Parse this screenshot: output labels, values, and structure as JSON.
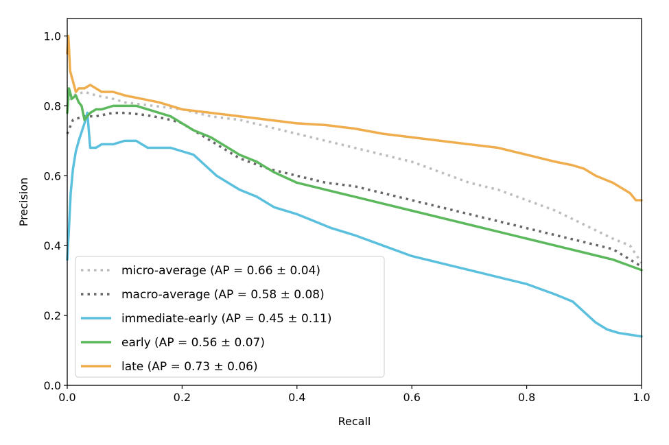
{
  "chart_data": {
    "type": "line",
    "title": "",
    "xlabel": "Recall",
    "ylabel": "Precision",
    "xlim": [
      0.0,
      1.0
    ],
    "ylim": [
      0.0,
      1.05
    ],
    "xticks": [
      "0.0",
      "0.2",
      "0.4",
      "0.6",
      "0.8",
      "1.0"
    ],
    "yticks": [
      "0.0",
      "0.2",
      "0.4",
      "0.6",
      "0.8",
      "1.0"
    ],
    "grid": false,
    "legend_position": "lower-left",
    "series": [
      {
        "name": "micro-average (AP = 0.66 ± 0.04)",
        "color": "#bdbdbd",
        "style": "dotted",
        "x": [
          0.0,
          0.01,
          0.03,
          0.05,
          0.08,
          0.1,
          0.15,
          0.2,
          0.25,
          0.3,
          0.35,
          0.4,
          0.45,
          0.5,
          0.55,
          0.6,
          0.65,
          0.7,
          0.75,
          0.8,
          0.85,
          0.9,
          0.95,
          0.98,
          1.0
        ],
        "y": [
          0.8,
          0.83,
          0.84,
          0.83,
          0.82,
          0.81,
          0.8,
          0.79,
          0.77,
          0.76,
          0.74,
          0.72,
          0.7,
          0.68,
          0.66,
          0.64,
          0.61,
          0.58,
          0.56,
          0.53,
          0.5,
          0.46,
          0.42,
          0.4,
          0.35
        ]
      },
      {
        "name": "macro-average (AP = 0.58 ± 0.08)",
        "color": "#666666",
        "style": "dotted",
        "x": [
          0.0,
          0.01,
          0.03,
          0.05,
          0.08,
          0.1,
          0.13,
          0.15,
          0.18,
          0.2,
          0.22,
          0.25,
          0.28,
          0.3,
          0.35,
          0.4,
          0.45,
          0.5,
          0.55,
          0.6,
          0.65,
          0.7,
          0.75,
          0.8,
          0.85,
          0.9,
          0.95,
          1.0
        ],
        "y": [
          0.72,
          0.76,
          0.77,
          0.77,
          0.78,
          0.78,
          0.775,
          0.77,
          0.76,
          0.75,
          0.73,
          0.7,
          0.67,
          0.65,
          0.62,
          0.6,
          0.58,
          0.57,
          0.55,
          0.53,
          0.51,
          0.49,
          0.47,
          0.45,
          0.43,
          0.41,
          0.39,
          0.34
        ]
      },
      {
        "name": "immediate-early (AP = 0.45 ± 0.11)",
        "color": "#5bc0de",
        "style": "solid",
        "x": [
          0.0,
          0.003,
          0.006,
          0.01,
          0.015,
          0.02,
          0.03,
          0.035,
          0.04,
          0.05,
          0.06,
          0.08,
          0.1,
          0.12,
          0.14,
          0.16,
          0.18,
          0.2,
          0.22,
          0.24,
          0.26,
          0.28,
          0.3,
          0.33,
          0.36,
          0.4,
          0.43,
          0.46,
          0.5,
          0.55,
          0.6,
          0.65,
          0.7,
          0.75,
          0.8,
          0.85,
          0.88,
          0.9,
          0.92,
          0.94,
          0.96,
          0.98,
          1.0
        ],
        "y": [
          0.36,
          0.45,
          0.55,
          0.62,
          0.67,
          0.7,
          0.75,
          0.78,
          0.68,
          0.68,
          0.69,
          0.69,
          0.7,
          0.7,
          0.68,
          0.68,
          0.68,
          0.67,
          0.66,
          0.63,
          0.6,
          0.58,
          0.56,
          0.54,
          0.51,
          0.49,
          0.47,
          0.45,
          0.43,
          0.4,
          0.37,
          0.35,
          0.33,
          0.31,
          0.29,
          0.26,
          0.24,
          0.21,
          0.18,
          0.16,
          0.15,
          0.145,
          0.14
        ]
      },
      {
        "name": "early (AP = 0.56 ± 0.07)",
        "color": "#5cb85c",
        "style": "solid",
        "x": [
          0.0,
          0.003,
          0.008,
          0.015,
          0.02,
          0.025,
          0.03,
          0.04,
          0.05,
          0.06,
          0.08,
          0.1,
          0.12,
          0.14,
          0.16,
          0.18,
          0.2,
          0.22,
          0.25,
          0.28,
          0.3,
          0.33,
          0.36,
          0.4,
          0.45,
          0.5,
          0.55,
          0.6,
          0.65,
          0.7,
          0.75,
          0.8,
          0.85,
          0.9,
          0.95,
          1.0
        ],
        "y": [
          0.78,
          0.85,
          0.82,
          0.83,
          0.81,
          0.8,
          0.76,
          0.78,
          0.79,
          0.79,
          0.8,
          0.8,
          0.8,
          0.79,
          0.78,
          0.77,
          0.75,
          0.73,
          0.71,
          0.68,
          0.66,
          0.64,
          0.61,
          0.58,
          0.56,
          0.54,
          0.52,
          0.5,
          0.48,
          0.46,
          0.44,
          0.42,
          0.4,
          0.38,
          0.36,
          0.33
        ]
      },
      {
        "name": "late (AP = 0.73 ± 0.06)",
        "color": "#f0ad4e",
        "style": "solid",
        "x": [
          0.0,
          0.002,
          0.005,
          0.01,
          0.015,
          0.02,
          0.03,
          0.04,
          0.05,
          0.06,
          0.08,
          0.1,
          0.13,
          0.16,
          0.2,
          0.25,
          0.3,
          0.35,
          0.4,
          0.45,
          0.5,
          0.55,
          0.6,
          0.65,
          0.7,
          0.75,
          0.8,
          0.85,
          0.88,
          0.9,
          0.92,
          0.95,
          0.97,
          0.98,
          0.99,
          1.0
        ],
        "y": [
          0.95,
          1.0,
          0.9,
          0.87,
          0.84,
          0.85,
          0.85,
          0.86,
          0.85,
          0.84,
          0.84,
          0.83,
          0.82,
          0.81,
          0.79,
          0.78,
          0.77,
          0.76,
          0.75,
          0.745,
          0.735,
          0.72,
          0.71,
          0.7,
          0.69,
          0.68,
          0.66,
          0.64,
          0.63,
          0.62,
          0.6,
          0.58,
          0.56,
          0.55,
          0.53,
          0.53
        ]
      }
    ]
  }
}
